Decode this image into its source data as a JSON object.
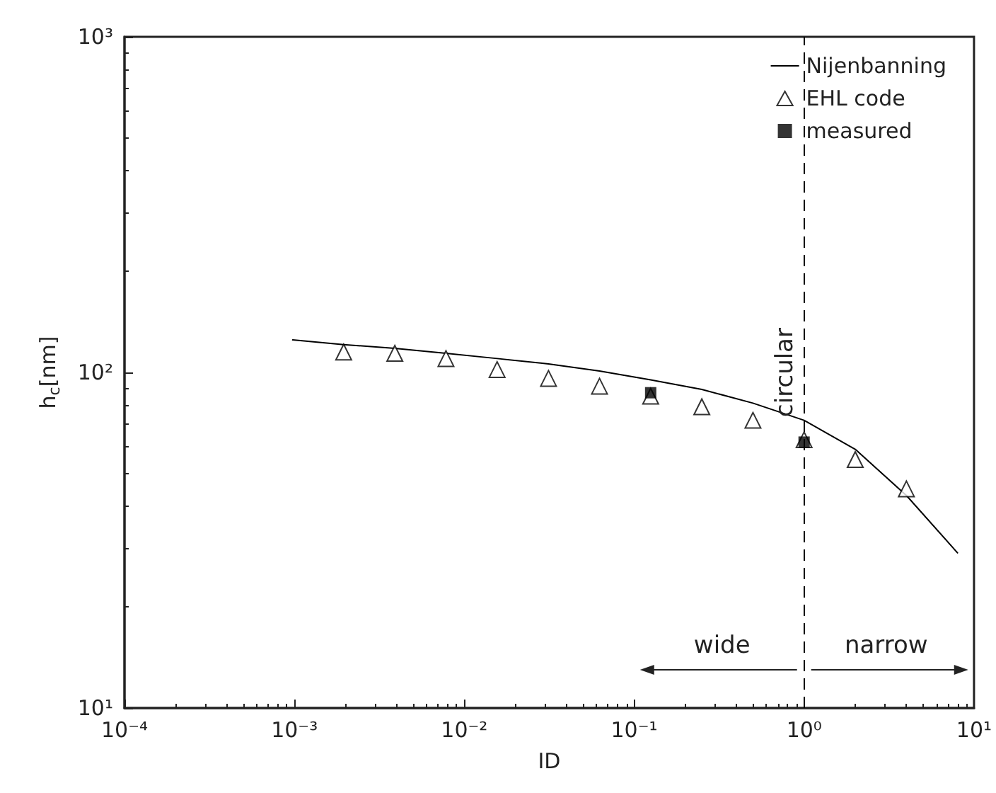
{
  "chart_data": {
    "type": "line",
    "xlabel": "ID",
    "ylabel": "h$_{c}$[nm]",
    "log": "xy",
    "grid": false,
    "legend": "top right",
    "xlim": [
      0.0001,
      10
    ],
    "ylim": [
      10,
      1000
    ],
    "xticks": [
      {
        "value": 0.0001,
        "label": "10⁻⁴"
      },
      {
        "value": 0.001,
        "label": "10⁻³"
      },
      {
        "value": 0.01,
        "label": "10⁻²"
      },
      {
        "value": 0.1,
        "label": "10⁻¹"
      },
      {
        "value": 1,
        "label": "10⁰"
      },
      {
        "value": 10,
        "label": "10¹"
      }
    ],
    "yticks": [
      {
        "value": 10,
        "label": "10¹"
      },
      {
        "value": 100,
        "label": "10²"
      },
      {
        "value": 1000,
        "label": "10³"
      }
    ],
    "series": [
      {
        "name": "Nijenbanning",
        "type": "line",
        "color": "#000000",
        "marker": "none",
        "line_style": "solid",
        "x": [
          0.000977,
          0.00195,
          0.0039,
          0.0078,
          0.0156,
          0.0313,
          0.0625,
          0.125,
          0.25,
          0.5,
          1,
          2,
          4,
          8
        ],
        "values": [
          125,
          121,
          118,
          114,
          110,
          106,
          101,
          95,
          89,
          81,
          72,
          59,
          43,
          29
        ]
      },
      {
        "name": "EHL code",
        "type": "scatter",
        "color": "#000000",
        "marker": "triangle",
        "x": [
          0.00195,
          0.0039,
          0.0078,
          0.0156,
          0.0313,
          0.0625,
          0.125,
          0.25,
          0.5,
          1,
          2,
          4
        ],
        "values": [
          115,
          114,
          110,
          102,
          96,
          91,
          85,
          79,
          72,
          63,
          55,
          45
        ]
      },
      {
        "name": "measured",
        "type": "scatter",
        "color": "#000000",
        "marker": "square",
        "x": [
          0.125,
          1
        ],
        "values": [
          87,
          62
        ]
      }
    ],
    "ref_lines": [
      {
        "axis": "x",
        "value": 1,
        "label": "circular",
        "line_style": "dashed",
        "color": "#000000"
      }
    ],
    "annotations": [
      "wide",
      "narrow"
    ]
  }
}
